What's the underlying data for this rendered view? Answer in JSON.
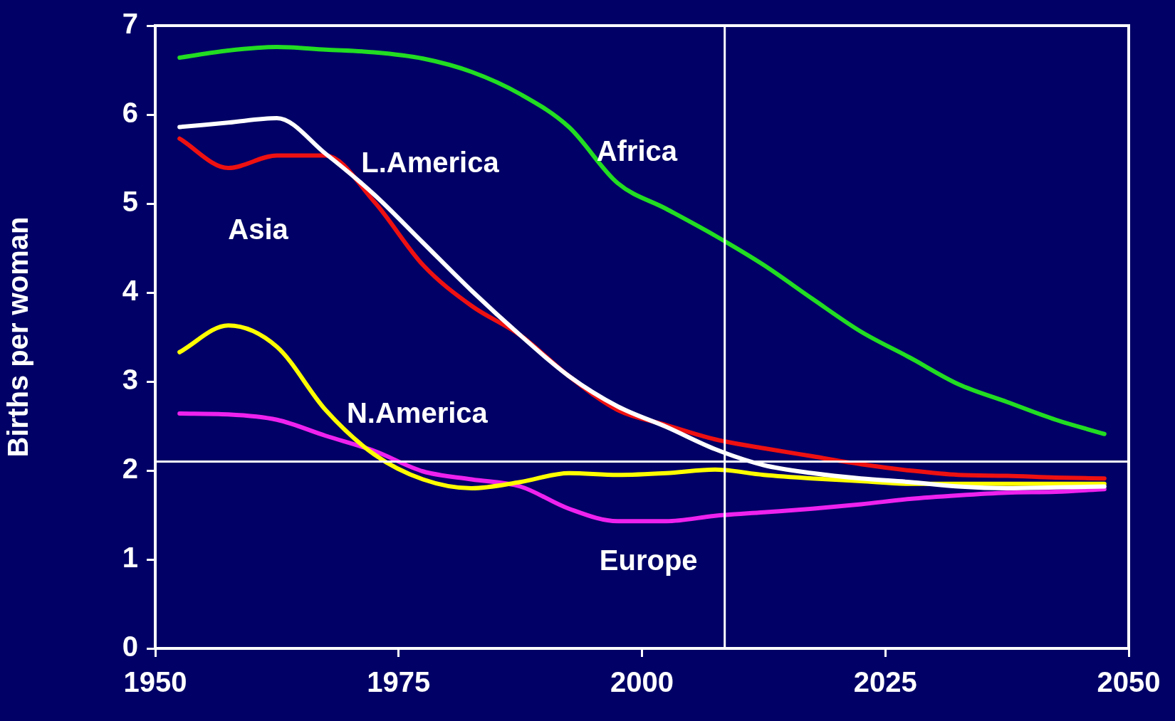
{
  "chart_data": {
    "type": "line",
    "ylabel": "Births per woman",
    "x": [
      1952.5,
      1957.5,
      1962.5,
      1967.5,
      1972.5,
      1977.5,
      1982.5,
      1987.5,
      1992.5,
      1997.5,
      2002.5,
      2007.5,
      2012.5,
      2017.5,
      2022.5,
      2027.5,
      2032.5,
      2037.5,
      2042.5,
      2047.5
    ],
    "series": [
      {
        "name": "Africa",
        "color": "#22dd22",
        "values": [
          6.64,
          6.72,
          6.76,
          6.73,
          6.7,
          6.63,
          6.48,
          6.23,
          5.86,
          5.23,
          4.94,
          4.64,
          4.31,
          3.93,
          3.56,
          3.27,
          2.97,
          2.77,
          2.57,
          2.41
        ]
      },
      {
        "name": "L.America",
        "color": "#ffffff",
        "values": [
          5.86,
          5.91,
          5.96,
          5.56,
          5.1,
          4.56,
          4.02,
          3.52,
          3.06,
          2.72,
          2.49,
          2.24,
          2.06,
          1.97,
          1.91,
          1.87,
          1.82,
          1.8,
          1.81,
          1.82
        ]
      },
      {
        "name": "Asia",
        "color": "#ee1111",
        "values": [
          5.73,
          5.4,
          5.54,
          5.54,
          5.02,
          4.31,
          3.85,
          3.52,
          3.06,
          2.68,
          2.51,
          2.35,
          2.25,
          2.16,
          2.07,
          2,
          1.95,
          1.94,
          1.92,
          1.91
        ]
      },
      {
        "name": "N.America",
        "color": "#ffff00",
        "values": [
          3.33,
          3.63,
          3.39,
          2.68,
          2.18,
          1.9,
          1.8,
          1.87,
          1.97,
          1.95,
          1.97,
          2.01,
          1.95,
          1.91,
          1.88,
          1.85,
          1.85,
          1.85,
          1.85,
          1.85
        ]
      },
      {
        "name": "Europe",
        "color": "#ee22ee",
        "values": [
          2.64,
          2.63,
          2.57,
          2.39,
          2.22,
          1.99,
          1.9,
          1.82,
          1.57,
          1.43,
          1.43,
          1.49,
          1.53,
          1.57,
          1.62,
          1.68,
          1.72,
          1.75,
          1.76,
          1.79
        ]
      }
    ],
    "xlim": [
      1950,
      2050
    ],
    "xticks": [
      1950,
      1975,
      2000,
      2025,
      2050
    ],
    "ylim": [
      0,
      7
    ],
    "yticks": [
      0,
      1,
      2,
      3,
      4,
      5,
      6,
      7
    ],
    "grid": false,
    "legend": false,
    "marker": "none",
    "line_style": "solid",
    "ref_lines": [
      {
        "axis": "y",
        "value": 2.1,
        "color": "#ffffff"
      },
      {
        "axis": "x",
        "value": 2008.5,
        "color": "#ffffff"
      }
    ]
  }
}
